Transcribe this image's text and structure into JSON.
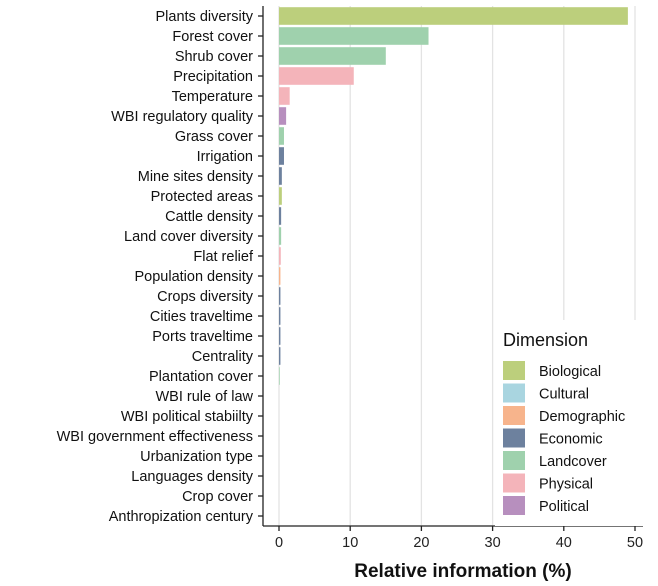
{
  "chart_data": {
    "type": "bar",
    "orientation": "horizontal",
    "xlabel": "Relative information (%)",
    "ylabel": "",
    "xlim": [
      0,
      50
    ],
    "xticks": [
      0,
      10,
      20,
      30,
      40,
      50
    ],
    "grid": true,
    "legend": {
      "title": "Dimension",
      "position": "bottom-right",
      "items": [
        {
          "name": "Biological",
          "color": "#bccf7c"
        },
        {
          "name": "Cultural",
          "color": "#a9d5e0"
        },
        {
          "name": "Demographic",
          "color": "#f7b48c"
        },
        {
          "name": "Economic",
          "color": "#6d819e"
        },
        {
          "name": "Landcover",
          "color": "#9fd1ad"
        },
        {
          "name": "Physical",
          "color": "#f4b4ba"
        },
        {
          "name": "Political",
          "color": "#b78fbe"
        }
      ]
    },
    "bars": [
      {
        "label": "Plants diversity",
        "value": 49.0,
        "dimension": "Biological"
      },
      {
        "label": "Forest cover",
        "value": 21.0,
        "dimension": "Landcover"
      },
      {
        "label": "Shrub cover",
        "value": 15.0,
        "dimension": "Landcover"
      },
      {
        "label": "Precipitation",
        "value": 10.5,
        "dimension": "Physical"
      },
      {
        "label": "Temperature",
        "value": 1.5,
        "dimension": "Physical"
      },
      {
        "label": "WBI regulatory quality",
        "value": 1.0,
        "dimension": "Political"
      },
      {
        "label": "Grass cover",
        "value": 0.7,
        "dimension": "Landcover"
      },
      {
        "label": "Irrigation",
        "value": 0.7,
        "dimension": "Economic"
      },
      {
        "label": "Mine sites density",
        "value": 0.4,
        "dimension": "Economic"
      },
      {
        "label": "Protected areas",
        "value": 0.4,
        "dimension": "Biological"
      },
      {
        "label": "Cattle density",
        "value": 0.3,
        "dimension": "Economic"
      },
      {
        "label": "Land cover diversity",
        "value": 0.3,
        "dimension": "Landcover"
      },
      {
        "label": "Flat relief",
        "value": 0.25,
        "dimension": "Physical"
      },
      {
        "label": "Population density",
        "value": 0.2,
        "dimension": "Demographic"
      },
      {
        "label": "Crops diversity",
        "value": 0.2,
        "dimension": "Economic"
      },
      {
        "label": "Cities traveltime",
        "value": 0.2,
        "dimension": "Economic"
      },
      {
        "label": "Ports traveltime",
        "value": 0.2,
        "dimension": "Economic"
      },
      {
        "label": "Centrality",
        "value": 0.2,
        "dimension": "Economic"
      },
      {
        "label": "Plantation cover",
        "value": 0.1,
        "dimension": "Landcover"
      },
      {
        "label": "WBI rule of law",
        "value": 0.0,
        "dimension": "Political"
      },
      {
        "label": "WBI political stabiilty",
        "value": 0.0,
        "dimension": "Political"
      },
      {
        "label": "WBI government effectiveness",
        "value": 0.0,
        "dimension": "Political"
      },
      {
        "label": "Urbanization type",
        "value": 0.0,
        "dimension": "Demographic"
      },
      {
        "label": "Languages density",
        "value": 0.0,
        "dimension": "Cultural"
      },
      {
        "label": "Crop cover",
        "value": 0.0,
        "dimension": "Landcover"
      },
      {
        "label": "Anthropization century",
        "value": 0.0,
        "dimension": "Demographic"
      }
    ]
  }
}
